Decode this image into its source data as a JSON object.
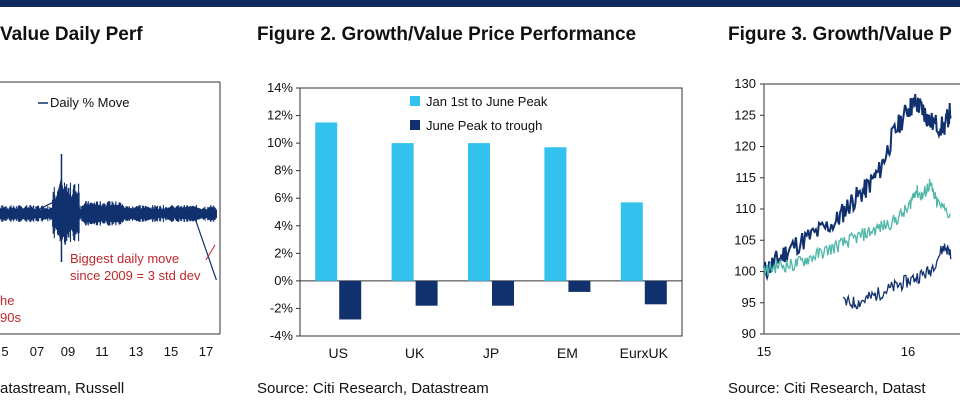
{
  "figures": [
    {
      "title": "Value Daily Perf",
      "source": "atastream, Russell"
    },
    {
      "title": "Figure 2. Growth/Value Price Performance",
      "source": "Source: Citi Research, Datastream"
    },
    {
      "title": "Figure 3. Growth/Value P",
      "source": "Source: Citi Research, Datast"
    }
  ],
  "colors": {
    "dark_navy": "#10306e",
    "light_blue": "#33c2ee",
    "teal": "#4fb7a9",
    "annotation_red": "#c0282c",
    "header": "#0e2a5f"
  },
  "chart_data": [
    {
      "type": "line",
      "title": "Value Daily Perf",
      "legend": [
        "Daily % Move"
      ],
      "legend_position": "top-right",
      "x_tick_labels": [
        "5",
        "07",
        "09",
        "11",
        "13",
        "15",
        "17"
      ],
      "annotations": [
        "Biggest daily move",
        "since 2009 = 3 std dev",
        "he",
        "90s"
      ],
      "series": [
        {
          "name": "Daily % Move",
          "color": "#10306e",
          "x": [
            2005,
            2007,
            2008.5,
            2008.8,
            2009.0,
            2009.3,
            2010,
            2012,
            2014,
            2016,
            2017.4
          ],
          "y": [
            0,
            0,
            0.6,
            1.6,
            -1.4,
            0.4,
            0.3,
            0.2,
            0.2,
            0.3,
            -3.0
          ]
        }
      ],
      "grid": false
    },
    {
      "type": "bar",
      "title": "Figure 2. Growth/Value Price Performance",
      "categories": [
        "US",
        "UK",
        "JP",
        "EM",
        "EurxUK"
      ],
      "series": [
        {
          "name": "Jan 1st to June Peak",
          "color": "#33c2ee",
          "values": [
            11.5,
            10.0,
            10.0,
            9.7,
            5.7
          ]
        },
        {
          "name": "June Peak to trough",
          "color": "#10306e",
          "values": [
            -2.8,
            -1.8,
            -1.8,
            -0.8,
            -1.7
          ]
        }
      ],
      "y_ticks": [
        "14%",
        "12%",
        "10%",
        "8%",
        "6%",
        "4%",
        "2%",
        "0%",
        "-2%",
        "-4%"
      ],
      "ylim": [
        -4,
        14
      ],
      "legend_position": "top-right",
      "grid": false
    },
    {
      "type": "line",
      "title": "Figure 3. Growth/Value P",
      "y_ticks": [
        "130",
        "125",
        "120",
        "115",
        "110",
        "105",
        "100",
        "95",
        "90"
      ],
      "ylim": [
        90,
        130
      ],
      "x_tick_labels": [
        "15",
        "16"
      ],
      "series": [
        {
          "color": "#10306e",
          "x": [
            2015.0,
            2015.1,
            2015.2,
            2015.35,
            2015.5,
            2015.6,
            2015.7,
            2015.8,
            2015.9,
            2016.0,
            2016.05,
            2016.1,
            2016.15,
            2016.25,
            2016.3
          ],
          "y": [
            100,
            102,
            104,
            106,
            108,
            111,
            113,
            116,
            122,
            126,
            127,
            126,
            124,
            123,
            126
          ]
        },
        {
          "color": "#10306e",
          "x": [
            2015.55,
            2015.65,
            2015.75,
            2015.85,
            2015.95,
            2016.05,
            2016.15,
            2016.25,
            2016.3
          ],
          "y": [
            95,
            95,
            96,
            97,
            98,
            99,
            100,
            104,
            103
          ]
        },
        {
          "color": "#4fb7a9",
          "x": [
            2015.0,
            2015.1,
            2015.2,
            2015.3,
            2015.4,
            2015.5,
            2015.6,
            2015.7,
            2015.8,
            2015.9,
            2016.0,
            2016.05,
            2016.1,
            2016.15,
            2016.2,
            2016.3
          ],
          "y": [
            100,
            101,
            101,
            102,
            103,
            104,
            105,
            106,
            107,
            108,
            110,
            113,
            112,
            114,
            111,
            109
          ]
        }
      ],
      "grid": false
    }
  ]
}
